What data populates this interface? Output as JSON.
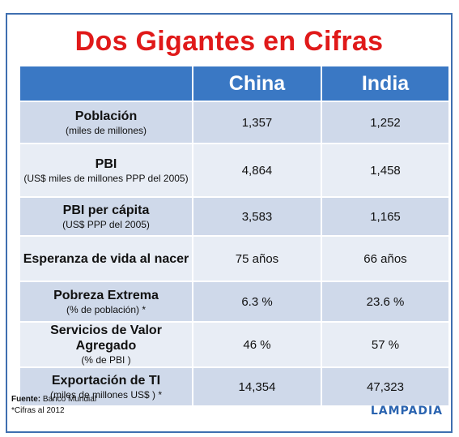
{
  "title": "Dos Gigantes en Cifras",
  "chart_data": {
    "type": "table",
    "columns": [
      "",
      "China",
      "India"
    ],
    "rows": [
      {
        "label": "Población",
        "sub": "(miles de millones)",
        "china": "1,357",
        "india": "1,252"
      },
      {
        "label": "PBI",
        "sub": "(US$ miles de millones PPP del 2005)",
        "china": "4,864",
        "india": "1,458"
      },
      {
        "label": "PBI per cápita",
        "sub": "(US$ PPP del 2005)",
        "china": "3,583",
        "india": "1,165"
      },
      {
        "label": "Esperanza de vida al nacer",
        "sub": "",
        "china": "75 años",
        "india": "66 años"
      },
      {
        "label": "Pobreza Extrema",
        "sub": "(% de población) *",
        "china": "6.3 %",
        "india": "23.6 %"
      },
      {
        "label": "Servicios de Valor Agregado",
        "sub": "(% de PBI )",
        "china": "46 %",
        "india": "57 %"
      },
      {
        "label": "Exportación de TI",
        "sub": "(miles de millones US$ ) *",
        "china": "14,354",
        "india": "47,323"
      }
    ]
  },
  "footer": {
    "source_label": "Fuente:",
    "source": "Banco Mundial",
    "note": "*Cifras al 2012"
  },
  "logo": "LAMPADIA",
  "colors": {
    "title": "#e01a1a",
    "header": "#3a78c4",
    "row_odd": "#cfd9ea",
    "row_even": "#e8edf5",
    "frame": "#3f6fb0"
  }
}
